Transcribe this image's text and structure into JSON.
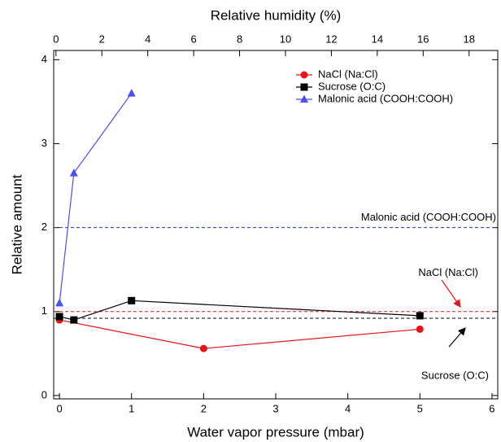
{
  "chart_data": {
    "type": "line",
    "xlabel": "Water vapor pressure (mbar)",
    "ylabel": "Relative amount",
    "x2label": "Relative humidity (%)",
    "xlim": [
      -0.08,
      6.08
    ],
    "xticks": [
      0,
      1,
      2,
      3,
      4,
      5,
      6
    ],
    "x2lim": [
      -0.1,
      19.25
    ],
    "x2ticks": [
      0,
      2,
      4,
      6,
      8,
      10,
      12,
      14,
      16,
      18
    ],
    "ylim": [
      -0.04,
      4.11
    ],
    "yticks": [
      0,
      1,
      2,
      3,
      4
    ],
    "legend": "upper right",
    "series": [
      {
        "name": "NaCl (Na:Cl)",
        "color": "#e8141b",
        "marker": "circle",
        "x": [
          0,
          2,
          5
        ],
        "values": [
          0.9,
          0.56,
          0.79
        ]
      },
      {
        "name": "Sucrose (O:C)",
        "color": "#000000",
        "marker": "square",
        "x": [
          0,
          0.2,
          1,
          5
        ],
        "values": [
          0.94,
          0.9,
          1.13,
          0.95
        ]
      },
      {
        "name": "Malonic acid (COOH:COOH)",
        "color": "#4a4ef5",
        "marker": "triangle",
        "x": [
          0,
          0.2,
          1
        ],
        "values": [
          1.1,
          2.65,
          3.6
        ]
      }
    ],
    "reference_lines": [
      {
        "value": 2,
        "color": "#1a2fd0",
        "label": "Malonic acid (COOH:COOH)"
      },
      {
        "value": 1,
        "color": "#e8141b",
        "label": "NaCl (Na:Cl)"
      },
      {
        "value": 0.92,
        "color": "#000000",
        "label": "Sucrose (O:C)"
      }
    ]
  }
}
